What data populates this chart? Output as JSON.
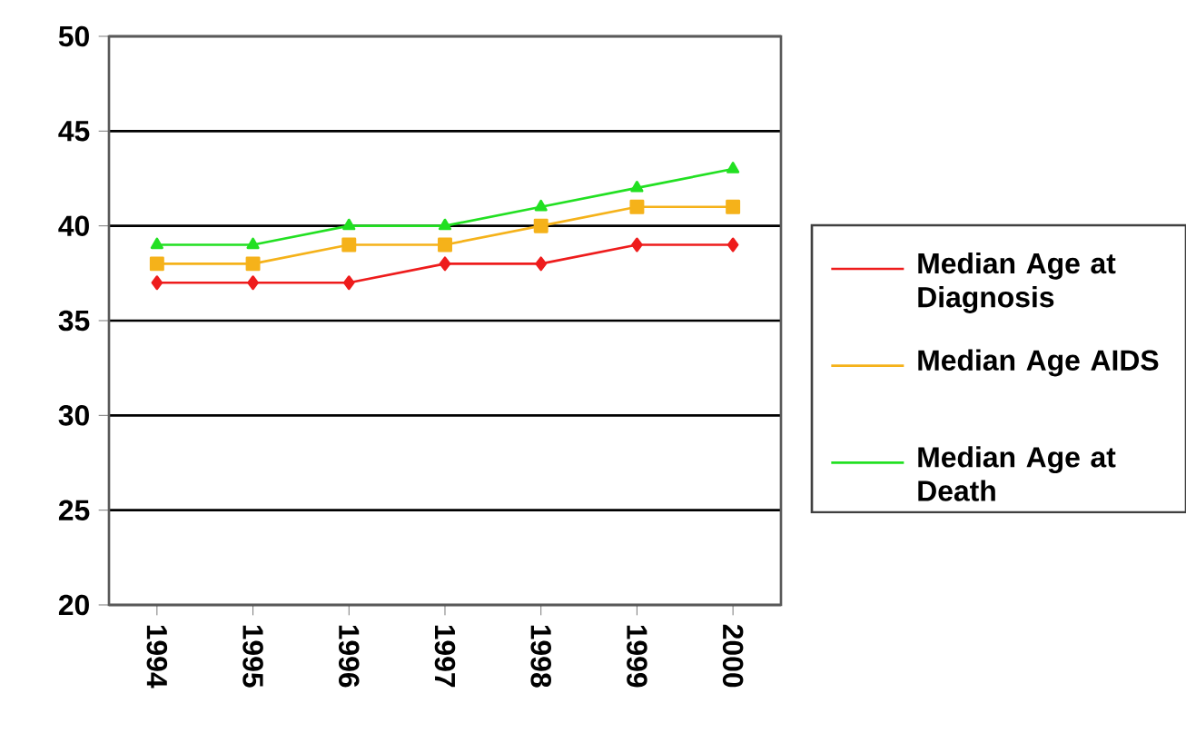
{
  "chart_data": {
    "type": "line",
    "categories": [
      "1994",
      "1995",
      "1996",
      "1997",
      "1998",
      "1999",
      "2000"
    ],
    "series": [
      {
        "name": "Median Age at Diagnosis",
        "color": "#ee1c1c",
        "marker": "diamond",
        "values": [
          37,
          37,
          37,
          38,
          38,
          39,
          39
        ]
      },
      {
        "name": "Median Age AIDS",
        "color": "#f5b21a",
        "marker": "square",
        "values": [
          38,
          38,
          39,
          39,
          40,
          41,
          41
        ]
      },
      {
        "name": "Median Age at Death",
        "color": "#22e022",
        "marker": "triangle",
        "values": [
          39,
          39,
          40,
          40,
          41,
          42,
          43
        ]
      }
    ],
    "ylim": [
      20,
      50
    ],
    "yticks": [
      20,
      25,
      30,
      35,
      40,
      45,
      50
    ],
    "grid": "y",
    "legend": "right",
    "line_style": "solid"
  }
}
